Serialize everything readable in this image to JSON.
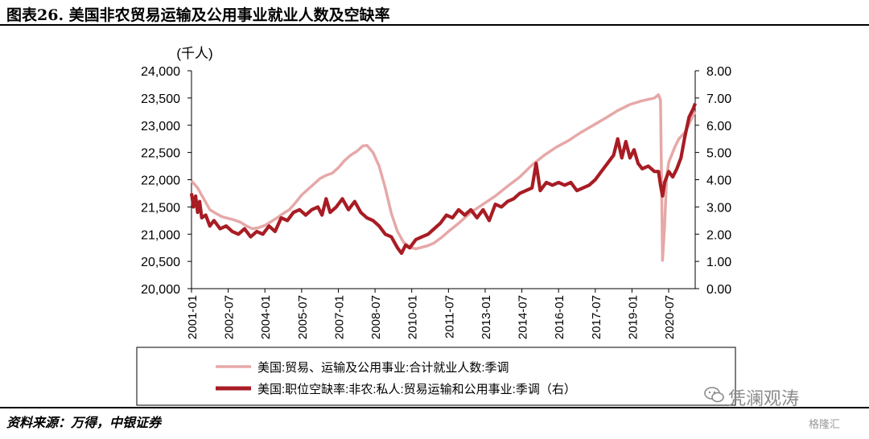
{
  "header": {
    "title": "图表26. 美国非农贸易运输及公用事业就业人数及空缺率"
  },
  "footer": {
    "source": "资料来源：万得，中银证券"
  },
  "watermark": {
    "main": "凭澜观涛",
    "secondary": "格隆汇",
    "icon": "wechat-icon"
  },
  "colors": {
    "employment": "#e6a8a8",
    "vacancy": "#a81c24"
  },
  "chart_data": {
    "type": "line",
    "unit_label": "(千人)",
    "x_tick_labels": [
      "2001-01",
      "2002-07",
      "2004-01",
      "2005-07",
      "2007-01",
      "2008-07",
      "2010-01",
      "2011-07",
      "2013-01",
      "2014-07",
      "2016-01",
      "2017-07",
      "2019-01",
      "2020-07"
    ],
    "y_left": {
      "min": 20000,
      "max": 24000,
      "ticks": [
        "20,000",
        "20,500",
        "21,000",
        "21,500",
        "22,000",
        "22,500",
        "23,000",
        "23,500",
        "24,000"
      ]
    },
    "y_right": {
      "min": 0,
      "max": 8,
      "ticks": [
        "0.00",
        "1.00",
        "2.00",
        "3.00",
        "4.00",
        "5.00",
        "6.00",
        "7.00",
        "8.00"
      ]
    },
    "x_range": [
      "2001-01",
      "2021-08"
    ],
    "legend": {
      "placement": "bottom"
    },
    "series": [
      {
        "name": "美国:贸易、运输及公用事业:合计就业人数:季调",
        "axis": "left",
        "points": [
          [
            "2001-01",
            21980
          ],
          [
            "2001-04",
            21850
          ],
          [
            "2001-07",
            21650
          ],
          [
            "2001-10",
            21450
          ],
          [
            "2002-01",
            21380
          ],
          [
            "2002-04",
            21320
          ],
          [
            "2002-07",
            21290
          ],
          [
            "2002-10",
            21260
          ],
          [
            "2003-01",
            21220
          ],
          [
            "2003-04",
            21150
          ],
          [
            "2003-07",
            21100
          ],
          [
            "2003-10",
            21120
          ],
          [
            "2004-01",
            21160
          ],
          [
            "2004-04",
            21230
          ],
          [
            "2004-07",
            21300
          ],
          [
            "2004-10",
            21380
          ],
          [
            "2005-01",
            21450
          ],
          [
            "2005-04",
            21580
          ],
          [
            "2005-07",
            21720
          ],
          [
            "2005-10",
            21820
          ],
          [
            "2006-01",
            21920
          ],
          [
            "2006-04",
            22020
          ],
          [
            "2006-07",
            22080
          ],
          [
            "2006-10",
            22120
          ],
          [
            "2007-01",
            22220
          ],
          [
            "2007-04",
            22350
          ],
          [
            "2007-07",
            22450
          ],
          [
            "2007-10",
            22520
          ],
          [
            "2008-01",
            22620
          ],
          [
            "2008-03",
            22630
          ],
          [
            "2008-06",
            22500
          ],
          [
            "2008-09",
            22250
          ],
          [
            "2008-12",
            21850
          ],
          [
            "2009-03",
            21380
          ],
          [
            "2009-06",
            21050
          ],
          [
            "2009-09",
            20850
          ],
          [
            "2009-12",
            20760
          ],
          [
            "2010-03",
            20730
          ],
          [
            "2010-06",
            20760
          ],
          [
            "2010-09",
            20790
          ],
          [
            "2010-12",
            20840
          ],
          [
            "2011-04",
            20950
          ],
          [
            "2011-07",
            21050
          ],
          [
            "2011-12",
            21200
          ],
          [
            "2012-06",
            21400
          ],
          [
            "2012-12",
            21550
          ],
          [
            "2013-06",
            21700
          ],
          [
            "2013-12",
            21880
          ],
          [
            "2014-06",
            22050
          ],
          [
            "2014-12",
            22270
          ],
          [
            "2015-06",
            22450
          ],
          [
            "2015-12",
            22600
          ],
          [
            "2016-06",
            22720
          ],
          [
            "2016-12",
            22870
          ],
          [
            "2017-06",
            23000
          ],
          [
            "2017-12",
            23130
          ],
          [
            "2018-06",
            23270
          ],
          [
            "2018-12",
            23380
          ],
          [
            "2019-06",
            23450
          ],
          [
            "2019-12",
            23500
          ],
          [
            "2020-02",
            23560
          ],
          [
            "2020-03",
            23460
          ],
          [
            "2020-04",
            20520
          ],
          [
            "2020-05",
            21150
          ],
          [
            "2020-06",
            22050
          ],
          [
            "2020-07",
            22320
          ],
          [
            "2020-10",
            22600
          ],
          [
            "2020-12",
            22750
          ],
          [
            "2021-03",
            22870
          ],
          [
            "2021-06",
            23100
          ],
          [
            "2021-08",
            23250
          ]
        ]
      },
      {
        "name": "美国:职位空缺率:非农:私人:贸易运输和公用事业:季调（右）",
        "axis": "right",
        "points": [
          [
            "2001-01",
            3.5
          ],
          [
            "2001-02",
            3.0
          ],
          [
            "2001-03",
            3.4
          ],
          [
            "2001-04",
            2.8
          ],
          [
            "2001-05",
            3.2
          ],
          [
            "2001-06",
            2.6
          ],
          [
            "2001-08",
            2.7
          ],
          [
            "2001-10",
            2.3
          ],
          [
            "2001-12",
            2.5
          ],
          [
            "2002-03",
            2.2
          ],
          [
            "2002-06",
            2.3
          ],
          [
            "2002-09",
            2.1
          ],
          [
            "2002-12",
            2.0
          ],
          [
            "2003-03",
            2.2
          ],
          [
            "2003-06",
            1.9
          ],
          [
            "2003-09",
            2.1
          ],
          [
            "2003-12",
            2.0
          ],
          [
            "2004-03",
            2.3
          ],
          [
            "2004-06",
            2.1
          ],
          [
            "2004-09",
            2.6
          ],
          [
            "2004-12",
            2.5
          ],
          [
            "2005-03",
            2.8
          ],
          [
            "2005-06",
            2.9
          ],
          [
            "2005-09",
            2.7
          ],
          [
            "2005-12",
            2.9
          ],
          [
            "2006-03",
            3.0
          ],
          [
            "2006-05",
            2.7
          ],
          [
            "2006-07",
            3.3
          ],
          [
            "2006-09",
            2.8
          ],
          [
            "2006-12",
            3.0
          ],
          [
            "2007-03",
            3.3
          ],
          [
            "2007-06",
            2.9
          ],
          [
            "2007-09",
            3.2
          ],
          [
            "2007-12",
            2.8
          ],
          [
            "2008-03",
            2.6
          ],
          [
            "2008-06",
            2.5
          ],
          [
            "2008-09",
            2.3
          ],
          [
            "2008-12",
            2.0
          ],
          [
            "2009-03",
            1.9
          ],
          [
            "2009-06",
            1.5
          ],
          [
            "2009-08",
            1.3
          ],
          [
            "2009-10",
            1.6
          ],
          [
            "2009-12",
            1.5
          ],
          [
            "2010-03",
            1.8
          ],
          [
            "2010-06",
            1.9
          ],
          [
            "2010-09",
            2.0
          ],
          [
            "2010-12",
            2.2
          ],
          [
            "2011-03",
            2.4
          ],
          [
            "2011-06",
            2.7
          ],
          [
            "2011-09",
            2.6
          ],
          [
            "2011-12",
            2.9
          ],
          [
            "2012-03",
            2.7
          ],
          [
            "2012-06",
            2.9
          ],
          [
            "2012-09",
            2.6
          ],
          [
            "2012-12",
            2.9
          ],
          [
            "2013-03",
            2.5
          ],
          [
            "2013-06",
            3.1
          ],
          [
            "2013-09",
            3.0
          ],
          [
            "2013-12",
            3.2
          ],
          [
            "2014-03",
            3.3
          ],
          [
            "2014-06",
            3.5
          ],
          [
            "2014-09",
            3.6
          ],
          [
            "2014-12",
            3.7
          ],
          [
            "2015-02",
            4.6
          ],
          [
            "2015-04",
            3.6
          ],
          [
            "2015-07",
            3.9
          ],
          [
            "2015-10",
            3.8
          ],
          [
            "2016-01",
            3.9
          ],
          [
            "2016-04",
            3.8
          ],
          [
            "2016-07",
            3.9
          ],
          [
            "2016-10",
            3.6
          ],
          [
            "2017-01",
            3.7
          ],
          [
            "2017-04",
            3.8
          ],
          [
            "2017-07",
            4.0
          ],
          [
            "2017-10",
            4.3
          ],
          [
            "2018-01",
            4.6
          ],
          [
            "2018-04",
            4.9
          ],
          [
            "2018-06",
            5.5
          ],
          [
            "2018-08",
            4.8
          ],
          [
            "2018-10",
            5.4
          ],
          [
            "2018-12",
            4.8
          ],
          [
            "2019-02",
            5.1
          ],
          [
            "2019-04",
            4.6
          ],
          [
            "2019-06",
            4.4
          ],
          [
            "2019-09",
            4.5
          ],
          [
            "2019-12",
            4.3
          ],
          [
            "2020-02",
            4.3
          ],
          [
            "2020-03",
            3.8
          ],
          [
            "2020-04",
            3.4
          ],
          [
            "2020-05",
            3.9
          ],
          [
            "2020-07",
            4.3
          ],
          [
            "2020-09",
            4.1
          ],
          [
            "2020-11",
            4.4
          ],
          [
            "2021-01",
            4.8
          ],
          [
            "2021-03",
            5.6
          ],
          [
            "2021-05",
            6.3
          ],
          [
            "2021-07",
            6.6
          ],
          [
            "2021-08",
            6.8
          ]
        ]
      }
    ]
  }
}
